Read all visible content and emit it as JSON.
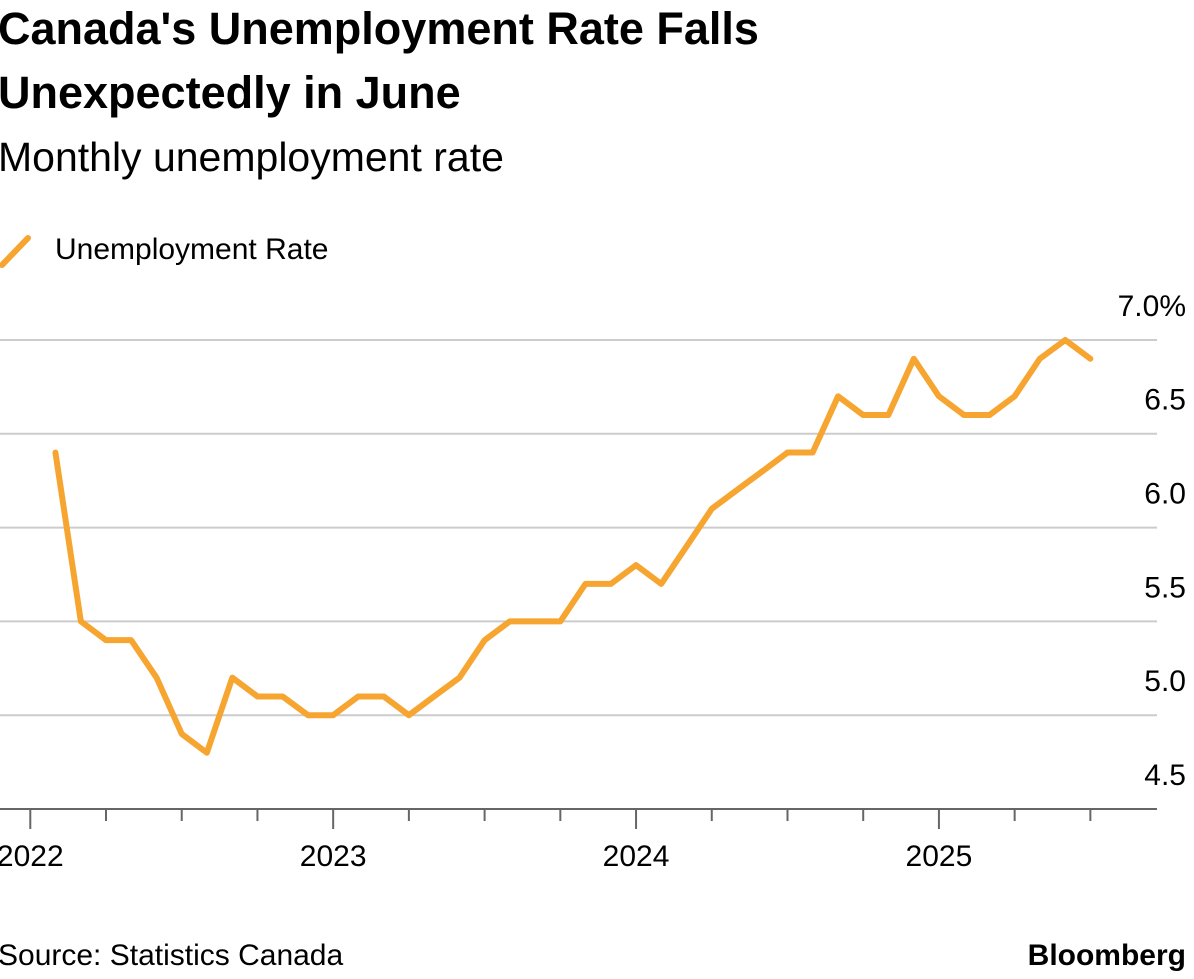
{
  "chart_data": {
    "type": "line",
    "title_lines": [
      "Canada's Unemployment Rate Falls",
      "Unexpectedly in June"
    ],
    "subtitle": "Monthly unemployment rate",
    "source": "Source: Statistics Canada",
    "brand": "Bloomberg",
    "x": [
      2022.083,
      2022.167,
      2022.25,
      2022.333,
      2022.417,
      2022.5,
      2022.583,
      2022.667,
      2022.75,
      2022.833,
      2022.917,
      2023.0,
      2023.083,
      2023.167,
      2023.25,
      2023.333,
      2023.417,
      2023.5,
      2023.583,
      2023.667,
      2023.75,
      2023.833,
      2023.917,
      2024.0,
      2024.083,
      2024.167,
      2024.25,
      2024.333,
      2024.417,
      2024.5,
      2024.583,
      2024.667,
      2024.75,
      2024.833,
      2024.917,
      2025.0,
      2025.083,
      2025.167,
      2025.25,
      2025.333,
      2025.417,
      2025.5
    ],
    "series": [
      {
        "name": "Unemployment Rate",
        "color": "#f7a531",
        "values": [
          6.4,
          5.5,
          5.4,
          5.4,
          5.2,
          4.9,
          4.8,
          5.2,
          5.1,
          5.1,
          5.0,
          5.0,
          5.1,
          5.1,
          5.0,
          5.1,
          5.2,
          5.4,
          5.5,
          5.5,
          5.5,
          5.7,
          5.7,
          5.8,
          5.7,
          5.9,
          6.1,
          6.2,
          6.3,
          6.4,
          6.4,
          6.7,
          6.6,
          6.6,
          6.9,
          6.7,
          6.6,
          6.6,
          6.7,
          6.9,
          7.0,
          6.9
        ]
      }
    ],
    "xlim": [
      2021.9,
      2025.72
    ],
    "xticks": [
      2022,
      2023,
      2024,
      2025
    ],
    "xminor_ticks": [
      2022.25,
      2022.5,
      2022.75,
      2023.25,
      2023.5,
      2023.75,
      2024.25,
      2024.5,
      2024.75,
      2025.25,
      2025.5
    ],
    "ylim": [
      4.5,
      7.0
    ],
    "yticks": [
      {
        "value": 7.0,
        "label": "7.0%"
      },
      6.5,
      {
        "value": 6.0,
        "label": "6.0"
      },
      5.5,
      {
        "value": 5.0,
        "label": "5.0"
      },
      4.5
    ],
    "grid": true
  }
}
